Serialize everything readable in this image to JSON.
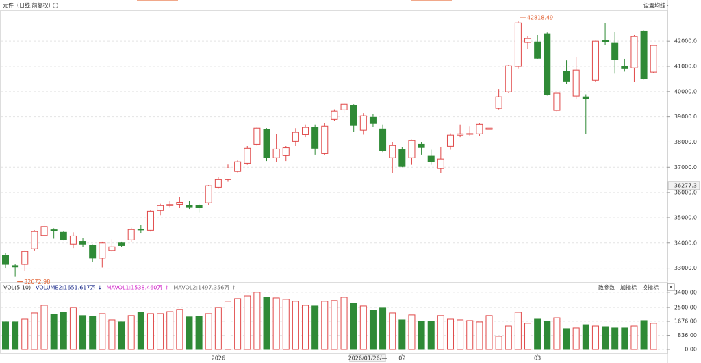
{
  "toolbar": {
    "title": "元件（日线,前复权）",
    "ma_setting": "设置均线"
  },
  "crosshair": {
    "price": 36277.3,
    "date": "2026/01/26/—"
  },
  "chart_data": [
    {
      "type": "candlestick",
      "up_color": "#e04848",
      "down_color": "#2f8a36",
      "open": [
        33500,
        33100,
        33150,
        33770,
        34300,
        34520,
        34420,
        33960,
        34060,
        33900,
        33400,
        33700,
        34000,
        34120,
        34540,
        34500,
        35290,
        35480,
        35530,
        35500,
        35500,
        35590,
        36210,
        36510,
        36840,
        37160,
        37920,
        38500,
        37380,
        37460,
        38030,
        38300,
        38580,
        37540,
        38900,
        39280,
        39450,
        38470,
        38980,
        38520,
        37380,
        37700,
        37380,
        37920,
        37440,
        36950,
        37840,
        38280,
        38320,
        38330,
        38500,
        39340,
        39990,
        41000,
        41950,
        41970,
        42300,
        39260,
        40800,
        39830,
        39800,
        40450,
        42030,
        41920,
        41000,
        40940,
        42400,
        40780
      ],
      "high": [
        33600,
        33150,
        33700,
        34500,
        34930,
        34580,
        34450,
        34420,
        34200,
        33950,
        34050,
        34150,
        34050,
        34600,
        34700,
        35300,
        35550,
        35650,
        35830,
        35650,
        35550,
        36300,
        36600,
        37110,
        37300,
        37850,
        38600,
        38550,
        38330,
        37850,
        38550,
        38700,
        38700,
        38750,
        39300,
        39550,
        39500,
        39150,
        39120,
        38700,
        38000,
        37800,
        38100,
        38000,
        37700,
        37800,
        38350,
        38700,
        38630,
        38750,
        38950,
        40100,
        41050,
        42818.49,
        42200,
        42250,
        42350,
        39950,
        41240,
        41380,
        39900,
        42020,
        42730,
        42380,
        41300,
        42250,
        42420,
        41860
      ],
      "low": [
        33000,
        32672.98,
        32900,
        33700,
        34250,
        34170,
        34100,
        33800,
        33850,
        33250,
        33030,
        33650,
        33850,
        34050,
        34400,
        34450,
        35100,
        35420,
        35400,
        35350,
        35200,
        35500,
        36150,
        36450,
        36800,
        37100,
        37850,
        37250,
        37200,
        37250,
        37850,
        38200,
        37500,
        37500,
        38850,
        39150,
        38400,
        38300,
        38600,
        37600,
        36780,
        37000,
        37100,
        37500,
        37100,
        36780,
        37700,
        38200,
        38250,
        38250,
        38450,
        39300,
        39950,
        40900,
        41700,
        41300,
        39850,
        39200,
        40300,
        39700,
        38330,
        40400,
        41850,
        40720,
        40800,
        40400,
        40480,
        40730
      ],
      "close": [
        33150,
        33050,
        33660,
        34450,
        34650,
        34480,
        34120,
        34280,
        33960,
        33400,
        34000,
        33850,
        33900,
        34530,
        34520,
        35260,
        35480,
        35520,
        35610,
        35430,
        35400,
        36270,
        36510,
        36970,
        37220,
        37760,
        38550,
        37400,
        37730,
        37780,
        38390,
        38580,
        37760,
        38630,
        39230,
        39500,
        38660,
        39040,
        38740,
        37650,
        37870,
        37030,
        38060,
        37790,
        37220,
        37330,
        38280,
        38330,
        38340,
        38710,
        38550,
        39800,
        41020,
        42730,
        42110,
        41320,
        39900,
        39940,
        40420,
        40860,
        39730,
        42000,
        41990,
        41270,
        40910,
        42190,
        40500,
        41840
      ],
      "ylim": [
        32500,
        43200
      ],
      "yticks": [
        {
          "value": 33000,
          "label": "33000.0"
        },
        {
          "value": 34000,
          "label": "34000.0"
        },
        {
          "value": 35000,
          "label": "35000.0"
        },
        {
          "value": 36000,
          "label": "36000.0"
        },
        {
          "value": 37000,
          "label": "37000.0"
        },
        {
          "value": 38000,
          "label": "38000.0"
        },
        {
          "value": 39000,
          "label": "39000.0"
        },
        {
          "value": 40000,
          "label": "40000.0"
        },
        {
          "value": 41000,
          "label": "41000.0"
        },
        {
          "value": 42000,
          "label": "42000.0"
        }
      ],
      "grid": true
    },
    {
      "type": "bar",
      "indicator": "VOL(5,10)",
      "legend": [
        {
          "text": "VOLUME2:1651.617万",
          "color": "#1a2a8a"
        },
        {
          "text": "MAVOL1:1538.460万",
          "color": "#d020c8"
        },
        {
          "text": "MAVOL2:1497.356万",
          "color": "#707070"
        }
      ],
      "buttons": [
        "改参数",
        "加指标",
        "换指标"
      ],
      "categories": [
        null,
        null,
        null,
        null,
        null,
        null,
        null,
        null,
        null,
        null,
        null,
        null,
        null,
        null,
        null,
        null,
        null,
        null,
        null,
        null,
        null,
        null,
        "2026",
        null,
        null,
        null,
        null,
        null,
        null,
        null,
        null,
        null,
        null,
        null,
        null,
        null,
        null,
        null,
        null,
        null,
        null,
        "02",
        null,
        null,
        null,
        null,
        null,
        null,
        null,
        null,
        null,
        null,
        null,
        null,
        null,
        "03",
        null,
        null,
        null,
        null,
        null,
        null,
        null,
        null,
        null,
        null,
        null,
        null
      ],
      "values": [
        1640,
        1640,
        1800,
        2170,
        2620,
        2090,
        2210,
        2500,
        2010,
        1970,
        2130,
        1760,
        1640,
        2010,
        2210,
        2130,
        2130,
        2250,
        2380,
        1930,
        1970,
        2130,
        2500,
        2870,
        3030,
        3190,
        3400,
        3110,
        3070,
        2990,
        2870,
        2620,
        2580,
        2870,
        2910,
        3110,
        2740,
        2580,
        2330,
        2500,
        2170,
        1760,
        2050,
        1680,
        1680,
        2010,
        1800,
        1760,
        1720,
        1640,
        2010,
        780,
        1390,
        2210,
        1560,
        1800,
        1680,
        1880,
        1230,
        1270,
        1470,
        1390,
        1350,
        1270,
        1270,
        1390,
        1720,
        1560
      ],
      "ylim": [
        0,
        3600
      ],
      "yticks": [
        {
          "value": 0,
          "label": "0.00"
        },
        {
          "value": 836,
          "label": "836.00"
        },
        {
          "value": 1676,
          "label": "1676.00"
        },
        {
          "value": 2500,
          "label": "2500.00"
        },
        {
          "value": 3400,
          "label": "3400.00"
        }
      ],
      "grid": true
    }
  ]
}
